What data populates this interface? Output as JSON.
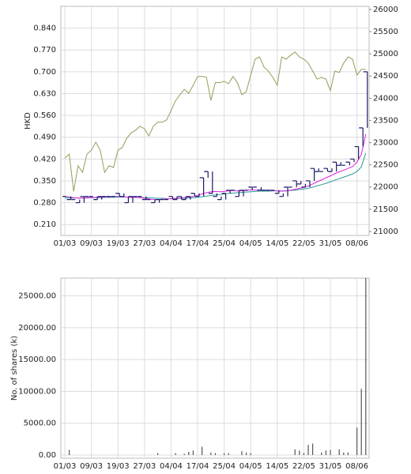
{
  "chart_data": [
    {
      "type": "stock",
      "y_label": "HKD",
      "categories": [
        "01/03",
        null,
        null,
        null,
        null,
        null,
        "09/03",
        null,
        null,
        null,
        null,
        null,
        "19/03",
        null,
        null,
        null,
        null,
        null,
        "27/03",
        null,
        null,
        null,
        null,
        null,
        "04/04",
        null,
        null,
        null,
        null,
        null,
        "17/04",
        null,
        null,
        null,
        null,
        null,
        "25/04",
        null,
        null,
        null,
        null,
        null,
        "04/05",
        null,
        null,
        null,
        null,
        null,
        "14/05",
        null,
        null,
        null,
        null,
        null,
        "22/05",
        null,
        null,
        null,
        null,
        null,
        "31/05",
        null,
        null,
        null,
        null,
        null,
        "08/06",
        null,
        null
      ],
      "ylim": [
        0.175,
        0.91
      ],
      "yticks": [
        {
          "value": 0.21,
          "label": "0.210"
        },
        {
          "value": 0.28,
          "label": "0.280"
        },
        {
          "value": 0.35,
          "label": "0.350"
        },
        {
          "value": 0.42,
          "label": "0.420"
        },
        {
          "value": 0.49,
          "label": "0.490"
        },
        {
          "value": 0.56,
          "label": "0.560"
        },
        {
          "value": 0.63,
          "label": "0.630"
        },
        {
          "value": 0.7,
          "label": "0.700"
        },
        {
          "value": 0.77,
          "label": "0.770"
        },
        {
          "value": 0.84,
          "label": "0.840"
        }
      ],
      "y2lim": [
        20910,
        26070
      ],
      "y2ticks": [
        21000,
        21500,
        22000,
        22500,
        23000,
        23500,
        24000,
        24500,
        25000,
        25500,
        26000
      ],
      "grid": true,
      "series": [
        {
          "style": "line",
          "color": "#9a9a5a",
          "axis": "y2",
          "values": [
            22650,
            22740,
            21900,
            22480,
            22330,
            22740,
            22830,
            23010,
            22830,
            22330,
            22480,
            22440,
            22830,
            22890,
            23100,
            23220,
            23280,
            23370,
            23310,
            23150,
            23370,
            23460,
            23460,
            23510,
            23720,
            23940,
            24080,
            24200,
            24110,
            24290,
            24490,
            24490,
            24470,
            23950,
            24350,
            24350,
            24380,
            24330,
            24490,
            24350,
            24080,
            24150,
            24520,
            24880,
            24930,
            24700,
            24610,
            24470,
            24290,
            24930,
            24880,
            24970,
            25040,
            24930,
            24880,
            24790,
            24610,
            24430,
            24470,
            24430,
            24170,
            24610,
            24580,
            24790,
            24930,
            24880,
            24520,
            24650,
            24650
          ]
        },
        {
          "style": "line",
          "color": "#2a9a9a",
          "values": [
            0.295,
            0.295,
            0.295,
            0.295,
            0.295,
            0.295,
            0.296,
            0.296,
            0.296,
            0.297,
            0.297,
            0.297,
            0.298,
            0.298,
            0.298,
            0.297,
            0.297,
            0.297,
            0.296,
            0.296,
            0.295,
            0.294,
            0.294,
            0.293,
            0.293,
            0.293,
            0.294,
            0.294,
            0.295,
            0.296,
            0.297,
            0.299,
            0.301,
            0.303,
            0.305,
            0.306,
            0.308,
            0.31,
            0.311,
            0.312,
            0.313,
            0.314,
            0.315,
            0.316,
            0.317,
            0.317,
            0.317,
            0.318,
            0.318,
            0.318,
            0.318,
            0.319,
            0.32,
            0.322,
            0.324,
            0.326,
            0.33,
            0.334,
            0.338,
            0.342,
            0.347,
            0.352,
            0.357,
            0.362,
            0.367,
            0.372,
            0.38,
            0.395,
            0.44
          ]
        },
        {
          "style": "line",
          "color": "#e020e0",
          "values": [
            0.3,
            0.298,
            0.296,
            0.295,
            0.295,
            0.296,
            0.297,
            0.297,
            0.298,
            0.298,
            0.299,
            0.3,
            0.3,
            0.3,
            0.298,
            0.297,
            0.297,
            0.296,
            0.294,
            0.292,
            0.29,
            0.29,
            0.291,
            0.292,
            0.293,
            0.294,
            0.295,
            0.296,
            0.298,
            0.3,
            0.303,
            0.308,
            0.312,
            0.315,
            0.316,
            0.315,
            0.316,
            0.318,
            0.319,
            0.318,
            0.318,
            0.32,
            0.321,
            0.321,
            0.321,
            0.32,
            0.32,
            0.319,
            0.318,
            0.317,
            0.318,
            0.32,
            0.323,
            0.326,
            0.329,
            0.333,
            0.34,
            0.347,
            0.353,
            0.36,
            0.366,
            0.373,
            0.379,
            0.384,
            0.39,
            0.396,
            0.41,
            0.435,
            0.5
          ]
        },
        {
          "style": "dash",
          "color": "#1a1a6a",
          "values": [
            0.3,
            0.29,
            0.29,
            0.28,
            0.3,
            0.3,
            0.3,
            0.29,
            0.3,
            0.3,
            0.3,
            0.3,
            0.31,
            0.3,
            0.28,
            0.3,
            0.3,
            0.3,
            0.29,
            0.29,
            0.28,
            0.29,
            0.29,
            0.29,
            0.3,
            0.29,
            0.3,
            0.29,
            0.3,
            0.31,
            0.3,
            0.36,
            0.38,
            0.31,
            0.3,
            0.29,
            0.31,
            0.32,
            0.32,
            0.3,
            0.32,
            0.32,
            0.33,
            0.33,
            0.32,
            0.32,
            0.32,
            0.32,
            0.31,
            0.3,
            0.33,
            0.33,
            0.35,
            0.34,
            0.33,
            0.35,
            0.39,
            0.38,
            0.38,
            0.39,
            0.38,
            0.41,
            0.4,
            0.4,
            0.41,
            0.42,
            0.46,
            0.52,
            0.7
          ]
        }
      ]
    },
    {
      "type": "bar",
      "y_label": "No. of shares (k)",
      "categories": [
        "01/03",
        null,
        null,
        null,
        null,
        null,
        "09/03",
        null,
        null,
        null,
        null,
        null,
        "19/03",
        null,
        null,
        null,
        null,
        null,
        "27/03",
        null,
        null,
        null,
        null,
        null,
        "04/04",
        null,
        null,
        null,
        null,
        null,
        "17/04",
        null,
        null,
        null,
        null,
        null,
        "25/04",
        null,
        null,
        null,
        null,
        null,
        "04/05",
        null,
        null,
        null,
        null,
        null,
        "14/05",
        null,
        null,
        null,
        null,
        null,
        "22/05",
        null,
        null,
        null,
        null,
        null,
        "31/05",
        null,
        null,
        null,
        null,
        null,
        "08/06",
        null,
        null
      ],
      "ylim": [
        -500,
        27800
      ],
      "yticks": [
        {
          "value": 0,
          "label": "0.00"
        },
        {
          "value": 5000,
          "label": "5000.00"
        },
        {
          "value": 10000,
          "label": "10000.00"
        },
        {
          "value": 15000,
          "label": "15000.00"
        },
        {
          "value": 20000,
          "label": "20000.00"
        },
        {
          "value": 25000,
          "label": "25000.00"
        }
      ],
      "grid": true,
      "color": "#555555",
      "values": [
        0,
        800,
        0,
        0,
        0,
        0,
        0,
        0,
        0,
        0,
        0,
        0,
        0,
        0,
        0,
        0,
        0,
        0,
        0,
        0,
        0,
        300,
        0,
        0,
        0,
        300,
        0,
        200,
        500,
        700,
        0,
        1300,
        0,
        400,
        300,
        0,
        300,
        300,
        0,
        0,
        600,
        400,
        300,
        0,
        0,
        0,
        0,
        0,
        0,
        0,
        0,
        0,
        900,
        700,
        300,
        1600,
        1800,
        0,
        400,
        700,
        800,
        0,
        900,
        400,
        400,
        0,
        4300,
        10400,
        27800
      ]
    }
  ]
}
